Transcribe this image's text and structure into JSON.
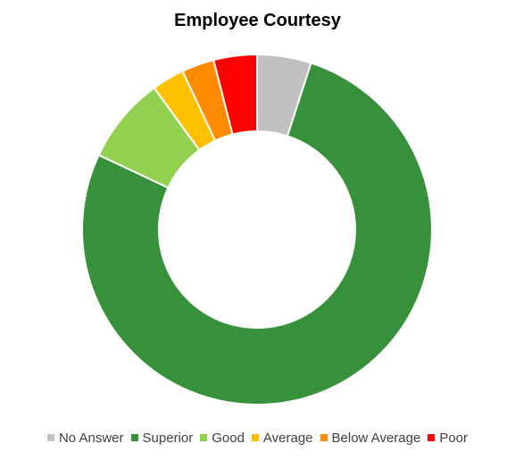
{
  "chart_data": {
    "type": "pie",
    "title": "Employee Courtesy",
    "legend_position": "bottom",
    "categories": [
      "No Answer",
      "Superior",
      "Good",
      "Average",
      "Below Average",
      "Poor"
    ],
    "values": [
      5,
      77,
      8,
      3,
      3,
      4
    ],
    "colors": [
      "#C0C0C0",
      "#37903A",
      "#92D050",
      "#FFC000",
      "#FF8C00",
      "#FF0000"
    ]
  }
}
